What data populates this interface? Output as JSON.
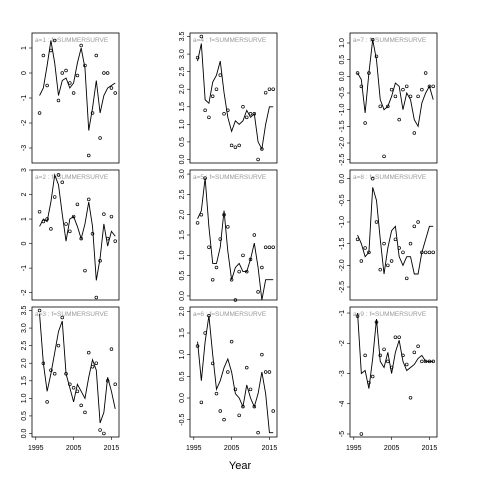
{
  "xlabel": "Year",
  "chart_data": [
    {
      "type": "scatter",
      "title": "a=1 : f=SUMMERSURVE",
      "x": [
        1996,
        1997,
        1998,
        1999,
        2000,
        2001,
        2002,
        2003,
        2004,
        2005,
        2006,
        2007,
        2008,
        2009,
        2010,
        2011,
        2012,
        2013,
        2014,
        2015,
        2016
      ],
      "xlim": [
        1994,
        2017
      ],
      "ylim": [
        -3.6,
        1.6
      ],
      "yticks": [
        -3,
        -2,
        -1,
        0,
        1
      ],
      "color": "#000000",
      "series": [
        {
          "mark": "point",
          "values": [
            -1.6,
            0.7,
            -0.5,
            0.9,
            1.3,
            -1.1,
            0.0,
            0.1,
            -0.4,
            -0.8,
            -0.1,
            1.1,
            0.3,
            -3.3,
            -1.6,
            0.7,
            -2.6,
            0.0,
            0.0,
            -0.6,
            -0.8
          ]
        },
        {
          "mark": "line",
          "values": [
            -0.9,
            -0.6,
            0.3,
            1.3,
            0.4,
            -0.9,
            -0.3,
            -0.2,
            -0.6,
            -0.4,
            0.4,
            1.0,
            0.2,
            -2.3,
            -1.4,
            -0.3,
            -1.6,
            -0.9,
            -0.6,
            -0.5,
            -0.4
          ]
        }
      ]
    },
    {
      "type": "scatter",
      "title": "a=2 : f=SUMMERSURVE",
      "x": [
        1996,
        1997,
        1998,
        1999,
        2000,
        2001,
        2002,
        2003,
        2004,
        2005,
        2006,
        2007,
        2008,
        2009,
        2010,
        2011,
        2012,
        2013,
        2014,
        2015,
        2016
      ],
      "xlim": [
        1994,
        2017
      ],
      "ylim": [
        -2.3,
        3.0
      ],
      "yticks": [
        -2,
        -1,
        0,
        1,
        2,
        3
      ],
      "color": "#000000",
      "series": [
        {
          "mark": "point",
          "values": [
            1.3,
            0.9,
            1.0,
            0.6,
            1.9,
            2.8,
            2.5,
            0.8,
            0.5,
            1.1,
            1.6,
            0.2,
            -1.1,
            1.8,
            0.4,
            -2.2,
            -0.7,
            1.2,
            0.2,
            1.1,
            0.1
          ]
        },
        {
          "mark": "line",
          "values": [
            0.7,
            1.0,
            0.9,
            1.7,
            2.8,
            2.4,
            1.2,
            0.1,
            1.0,
            1.1,
            0.7,
            0.2,
            0.8,
            1.7,
            0.7,
            -1.5,
            -0.6,
            0.8,
            -0.1,
            0.5,
            0.3
          ]
        }
      ]
    },
    {
      "type": "scatter",
      "title": "a=3 : f=SUMMERSURVE",
      "x": [
        1996,
        1997,
        1998,
        1999,
        2000,
        2001,
        2002,
        2003,
        2004,
        2005,
        2006,
        2007,
        2008,
        2009,
        2010,
        2011,
        2012,
        2013,
        2014,
        2015,
        2016
      ],
      "xlim": [
        1994,
        2017
      ],
      "xticks": [
        1995,
        2005,
        2015
      ],
      "ylim": [
        -0.1,
        3.6
      ],
      "yticks": [
        {
          "value": 0,
          "label": "0.0"
        },
        0.5,
        {
          "value": 1,
          "label": "1.0"
        },
        1.5,
        {
          "value": 2,
          "label": "2.0"
        },
        2.5,
        {
          "value": 3,
          "label": "3.0"
        },
        3.5
      ],
      "color": "#000000",
      "series": [
        {
          "mark": "point",
          "values": [
            3.5,
            2.0,
            0.9,
            1.8,
            1.7,
            2.5,
            3.3,
            1.7,
            1.4,
            1.3,
            1.2,
            0.8,
            0.6,
            2.3,
            1.9,
            2.0,
            0.1,
            0.0,
            1.5,
            2.4,
            1.4
          ]
        },
        {
          "mark": "line",
          "values": [
            3.4,
            2.0,
            1.2,
            1.7,
            2.3,
            2.9,
            3.2,
            1.7,
            1.3,
            0.9,
            1.4,
            1.2,
            1.0,
            1.6,
            2.1,
            1.8,
            0.3,
            0.6,
            1.6,
            1.2,
            0.7
          ]
        }
      ]
    },
    {
      "type": "scatter",
      "title": "a=4 : f=SUMMERSURVE",
      "x": [
        1996,
        1997,
        1998,
        1999,
        2000,
        2001,
        2002,
        2003,
        2004,
        2005,
        2006,
        2007,
        2008,
        2009,
        2010,
        2011,
        2012,
        2013,
        2014,
        2015,
        2016
      ],
      "xlim": [
        1994,
        2017
      ],
      "ylim": [
        -0.1,
        3.6
      ],
      "yticks": [
        {
          "value": 0,
          "label": "0.0"
        },
        0.5,
        {
          "value": 1,
          "label": "1.0"
        },
        1.5,
        {
          "value": 2,
          "label": "2.0"
        },
        2.5,
        {
          "value": 3,
          "label": "3.0"
        },
        3.5
      ],
      "color": "#000000",
      "series": [
        {
          "mark": "point",
          "values": [
            2.9,
            3.5,
            1.4,
            1.2,
            1.8,
            2.0,
            2.4,
            1.3,
            1.4,
            0.4,
            0.35,
            0.4,
            1.5,
            1.2,
            1.3,
            1.3,
            0.0,
            0.3,
            1.9,
            2.0,
            2.0
          ]
        },
        {
          "mark": "line",
          "values": [
            2.8,
            3.3,
            1.7,
            1.6,
            2.2,
            2.4,
            2.8,
            1.9,
            1.2,
            0.8,
            1.1,
            1.0,
            1.1,
            1.4,
            1.2,
            1.3,
            0.5,
            0.3,
            1.0,
            1.5,
            1.5
          ]
        }
      ]
    },
    {
      "type": "scatter",
      "title": "a=5 : f=SUMMERSURVE",
      "x": [
        1996,
        1997,
        1998,
        1999,
        2000,
        2001,
        2002,
        2003,
        2004,
        2005,
        2006,
        2007,
        2008,
        2009,
        2010,
        2011,
        2012,
        2013,
        2014,
        2015,
        2016
      ],
      "xlim": [
        1994,
        2017
      ],
      "ylim": [
        -0.1,
        3.1
      ],
      "yticks": [
        {
          "value": 0,
          "label": "0.0"
        },
        0.5,
        {
          "value": 1,
          "label": "1.0"
        },
        1.5,
        {
          "value": 2,
          "label": "2.0"
        },
        2.5,
        {
          "value": 3,
          "label": "3.0"
        }
      ],
      "color": "#000000",
      "series": [
        {
          "mark": "point",
          "values": [
            1.8,
            2.0,
            2.9,
            1.2,
            0.4,
            0.7,
            1.4,
            2.0,
            1.7,
            0.4,
            -0.1,
            0.6,
            1.0,
            0.6,
            0.9,
            1.5,
            0.1,
            0.7,
            1.2,
            1.2,
            1.2
          ]
        },
        {
          "mark": "line",
          "values": [
            1.9,
            2.1,
            2.9,
            1.7,
            0.8,
            0.8,
            1.2,
            2.1,
            1.1,
            0.4,
            0.7,
            0.8,
            0.6,
            0.6,
            0.9,
            1.3,
            0.7,
            -0.1,
            0.4,
            0.4,
            0.4
          ]
        }
      ]
    },
    {
      "type": "scatter",
      "title": "a=6 : f=SUMMERSURVE",
      "x": [
        1996,
        1997,
        1998,
        1999,
        2000,
        2001,
        2002,
        2003,
        2004,
        2005,
        2006,
        2007,
        2008,
        2009,
        2010,
        2011,
        2012,
        2013,
        2014,
        2015,
        2016
      ],
      "xlim": [
        1994,
        2017
      ],
      "xticks": [
        1995,
        2005,
        2015
      ],
      "ylim": [
        -0.9,
        2.1
      ],
      "yticks": [
        -0.5,
        {
          "value": 0,
          "label": "0.0"
        },
        0.5,
        {
          "value": 1,
          "label": "1.0"
        },
        1.5,
        {
          "value": 2,
          "label": "2.0"
        }
      ],
      "color": "#000000",
      "series": [
        {
          "mark": "point",
          "values": [
            1.2,
            -0.1,
            1.5,
            1.9,
            0.8,
            0.1,
            -0.3,
            -0.5,
            0.6,
            1.3,
            0.2,
            -0.4,
            -0.2,
            0.7,
            0.2,
            -0.2,
            -0.8,
            1.0,
            0.6,
            0.6,
            -0.3
          ]
        },
        {
          "mark": "line",
          "values": [
            1.3,
            0.4,
            1.3,
            1.9,
            1.0,
            0.2,
            0.4,
            0.7,
            0.9,
            0.6,
            0.1,
            0.0,
            -0.2,
            0.3,
            0.0,
            -0.2,
            0.1,
            0.6,
            0.1,
            -0.8,
            -0.8
          ]
        }
      ]
    },
    {
      "type": "scatter",
      "title": "a=7 : f=SUMMERSURVE",
      "x": [
        1996,
        1997,
        1998,
        1999,
        2000,
        2001,
        2002,
        2003,
        2004,
        2005,
        2006,
        2007,
        2008,
        2009,
        2010,
        2011,
        2012,
        2013,
        2014,
        2015,
        2016
      ],
      "xlim": [
        1994,
        2017
      ],
      "ylim": [
        -2.6,
        1.3
      ],
      "yticks": [
        -2.5,
        {
          "value": -2,
          "label": "-2.0"
        },
        -1.5,
        {
          "value": -1,
          "label": "-1.0"
        },
        -0.5,
        {
          "value": 0,
          "label": "0.0"
        },
        0.5,
        {
          "value": 1,
          "label": "1.0"
        }
      ],
      "color": "#000000",
      "series": [
        {
          "mark": "point",
          "values": [
            0.1,
            -0.3,
            -1.4,
            0.1,
            1.1,
            0.6,
            -0.9,
            -2.4,
            -0.9,
            -0.4,
            -0.6,
            -1.3,
            -0.4,
            -0.3,
            -0.6,
            -1.7,
            -0.6,
            -0.4,
            0.1,
            -0.3,
            -0.3
          ]
        },
        {
          "mark": "line",
          "values": [
            0.1,
            -0.1,
            -1.1,
            0.1,
            1.1,
            0.5,
            -0.7,
            -1.0,
            -0.9,
            -0.6,
            -0.2,
            -0.3,
            -1.0,
            -0.5,
            -0.7,
            -1.3,
            -1.5,
            -0.8,
            -0.5,
            -0.3,
            -0.7
          ]
        }
      ]
    },
    {
      "type": "scatter",
      "title": "a=8 : f=SUMMERSURVE",
      "x": [
        1996,
        1997,
        1998,
        1999,
        2000,
        2001,
        2002,
        2003,
        2004,
        2005,
        2006,
        2007,
        2008,
        2009,
        2010,
        2011,
        2012,
        2013,
        2014,
        2015,
        2016
      ],
      "xlim": [
        1994,
        2017
      ],
      "ylim": [
        -2.8,
        0.2
      ],
      "yticks": [
        -2.5,
        {
          "value": -2,
          "label": "-2.0"
        },
        -1.5,
        {
          "value": -1,
          "label": "-1.0"
        },
        -0.5,
        {
          "value": 0,
          "label": "0.0"
        }
      ],
      "color": "#000000",
      "series": [
        {
          "mark": "point",
          "values": [
            -1.4,
            -1.9,
            -1.6,
            -1.7,
            0.0,
            -1.0,
            -2.1,
            -1.5,
            -2.0,
            -1.9,
            -1.4,
            -1.6,
            -1.7,
            -2.3,
            -1.5,
            -1.1,
            -1.0,
            -1.7,
            -1.7,
            -1.7,
            -1.7
          ]
        },
        {
          "mark": "line",
          "values": [
            -1.3,
            -1.5,
            -1.8,
            -1.7,
            -0.2,
            -0.5,
            -1.4,
            -2.2,
            -1.6,
            -1.2,
            -1.1,
            -1.8,
            -2.0,
            -1.8,
            -1.8,
            -2.2,
            -2.2,
            -1.7,
            -1.4,
            -1.1,
            -1.1
          ]
        }
      ]
    },
    {
      "type": "scatter",
      "title": "a=9 : f=SUMMERSURVE",
      "x": [
        1996,
        1997,
        1998,
        1999,
        2000,
        2001,
        2002,
        2003,
        2004,
        2005,
        2006,
        2007,
        2008,
        2009,
        2010,
        2011,
        2012,
        2013,
        2014,
        2015,
        2016
      ],
      "xlim": [
        1994,
        2017
      ],
      "xticks": [
        1995,
        2005,
        2015
      ],
      "ylim": [
        -5.1,
        -0.8
      ],
      "yticks": [
        -5,
        -4,
        -3,
        -2,
        -1
      ],
      "color": "#000000",
      "series": [
        {
          "mark": "point",
          "values": [
            -1.1,
            -5.0,
            -2.4,
            -3.3,
            -3.1,
            -1.3,
            -2.4,
            -2.2,
            -2.6,
            -2.8,
            -1.8,
            -1.8,
            -2.4,
            -2.7,
            -3.8,
            -2.3,
            -2.1,
            -2.6,
            -2.6,
            -2.6,
            -2.6
          ]
        },
        {
          "mark": "line",
          "values": [
            -1.0,
            -3.0,
            -2.9,
            -3.5,
            -2.5,
            -1.2,
            -2.6,
            -2.8,
            -2.3,
            -3.0,
            -2.3,
            -1.9,
            -2.6,
            -2.9,
            -2.8,
            -2.7,
            -2.5,
            -2.4,
            -2.6,
            -2.6,
            -2.6
          ]
        }
      ]
    }
  ]
}
